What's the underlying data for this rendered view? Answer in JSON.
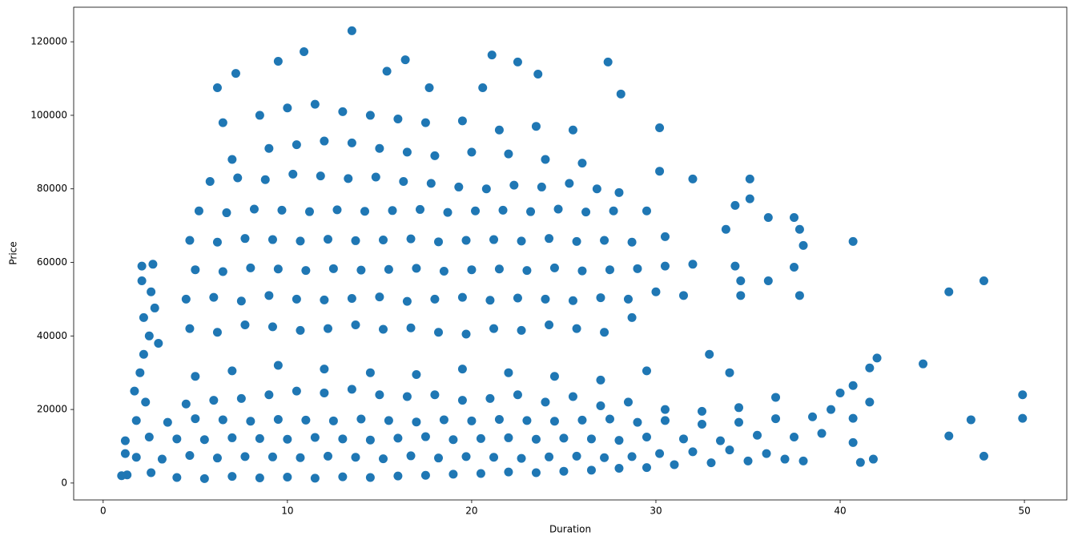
{
  "chart_data": {
    "type": "scatter",
    "color": "#1f77b4",
    "xlabel": "Duration",
    "ylabel": "Price",
    "xlim": [
      -1.6,
      52.3
    ],
    "ylim": [
      -4600,
      129400
    ],
    "xticks": [
      0,
      10,
      20,
      30,
      40,
      50
    ],
    "yticks": [
      0,
      20000,
      40000,
      60000,
      80000,
      100000,
      120000
    ],
    "x": [
      1.3,
      2.6,
      4.0,
      5.5,
      7.0,
      8.5,
      10.0,
      11.5,
      13.0,
      14.5,
      16.0,
      17.5,
      19.0,
      20.5,
      22.0,
      23.5,
      25.0,
      26.5,
      28.0,
      29.5,
      31.0,
      33.0,
      35.0,
      37.0,
      1.8,
      3.2,
      4.7,
      6.2,
      7.7,
      9.2,
      10.7,
      12.2,
      13.7,
      15.2,
      16.7,
      18.2,
      19.7,
      21.2,
      22.7,
      24.2,
      25.7,
      27.2,
      28.7,
      30.2,
      32.0,
      34.0,
      36.0,
      1.2,
      2.5,
      4.0,
      5.5,
      7.0,
      8.5,
      10.0,
      11.5,
      13.0,
      14.5,
      16.0,
      17.5,
      19.0,
      20.5,
      22.0,
      23.5,
      25.0,
      26.5,
      28.0,
      29.5,
      31.5,
      33.5,
      35.5,
      37.5,
      39.0,
      1.8,
      3.5,
      5.0,
      6.5,
      8.0,
      9.5,
      11.0,
      12.5,
      14.0,
      15.5,
      17.0,
      18.5,
      20.0,
      21.5,
      23.0,
      24.5,
      26.0,
      27.5,
      29.0,
      30.5,
      32.5,
      34.5,
      36.5,
      38.5,
      2.3,
      4.5,
      6.0,
      7.5,
      9.0,
      10.5,
      12.0,
      13.5,
      15.0,
      16.5,
      18.0,
      19.5,
      21.0,
      22.5,
      24.0,
      25.5,
      27.0,
      28.5,
      30.5,
      32.5,
      34.5,
      2.0,
      5.0,
      7.0,
      9.5,
      12.0,
      14.5,
      17.0,
      19.5,
      22.0,
      24.5,
      27.0,
      29.5,
      2.2,
      2.5,
      2.2,
      2.6,
      2.1,
      3.0,
      4.7,
      6.2,
      7.7,
      9.2,
      10.7,
      12.2,
      13.7,
      15.2,
      16.7,
      18.2,
      19.7,
      21.2,
      22.7,
      24.2,
      25.7,
      27.2,
      28.7,
      4.5,
      6.0,
      7.5,
      9.0,
      10.5,
      12.0,
      13.5,
      15.0,
      16.5,
      18.0,
      19.5,
      21.0,
      22.5,
      24.0,
      25.5,
      27.0,
      28.5,
      30.0,
      31.5,
      5.0,
      6.5,
      8.0,
      9.5,
      11.0,
      12.5,
      14.0,
      15.5,
      17.0,
      18.5,
      20.0,
      21.5,
      23.0,
      24.5,
      26.0,
      27.5,
      29.0,
      30.5,
      32.0,
      4.7,
      6.2,
      7.7,
      9.2,
      10.7,
      12.2,
      13.7,
      15.2,
      16.7,
      18.2,
      19.7,
      21.2,
      22.7,
      24.2,
      25.7,
      27.2,
      28.7,
      30.5,
      5.2,
      6.7,
      8.2,
      9.7,
      11.2,
      12.7,
      14.2,
      15.7,
      17.2,
      18.7,
      20.2,
      21.7,
      23.2,
      24.7,
      26.2,
      27.7,
      29.5,
      5.8,
      7.3,
      8.8,
      10.3,
      11.8,
      13.3,
      14.8,
      16.3,
      17.8,
      19.3,
      20.8,
      22.3,
      23.8,
      25.3,
      26.8,
      28.0,
      7.0,
      9.0,
      10.5,
      12.0,
      13.5,
      15.0,
      16.5,
      18.0,
      20.0,
      22.0,
      24.0,
      26.0,
      6.5,
      8.5,
      10.0,
      11.5,
      13.0,
      14.5,
      16.0,
      17.5,
      19.5,
      21.5,
      23.5,
      25.5,
      13.5,
      10.9,
      21.1,
      16.4,
      27.4,
      9.5,
      22.5,
      7.2,
      15.4,
      23.6,
      6.2,
      20.6,
      17.7,
      28.1,
      30.2,
      30.2,
      32.0,
      35.1,
      35.1,
      34.3,
      36.1,
      37.5,
      37.8,
      38.0,
      40.7,
      37.5,
      36.1,
      34.6,
      34.6,
      37.8,
      45.9,
      47.8,
      33.8,
      34.3,
      32.9,
      34.0,
      44.5,
      42.0,
      41.6,
      49.9,
      49.9,
      47.1,
      45.9,
      47.8,
      41.8,
      41.1,
      40.7,
      40.0,
      40.7,
      41.6,
      40.7,
      39.5,
      38.0,
      36.5,
      2.8,
      2.1,
      2.7,
      1.7,
      1.0,
      1.2
    ],
    "values": [
      2200,
      2800,
      1500,
      1200,
      1800,
      1400,
      1600,
      1300,
      1700,
      1500,
      1900,
      2100,
      2400,
      2600,
      3000,
      2800,
      3200,
      3500,
      4000,
      4200,
      5000,
      5500,
      6000,
      6500,
      7000,
      6500,
      7500,
      6800,
      7200,
      7100,
      6900,
      7300,
      7000,
      6600,
      7400,
      6800,
      7200,
      7000,
      6700,
      7100,
      7300,
      6900,
      7200,
      8000,
      8500,
      9000,
      8000,
      11500,
      12500,
      12000,
      11800,
      12300,
      12100,
      11900,
      12400,
      12000,
      11700,
      12200,
      12600,
      11800,
      12100,
      12300,
      11900,
      12200,
      12000,
      11600,
      12500,
      12000,
      11500,
      13000,
      12500,
      13500,
      17000,
      16500,
      17500,
      17200,
      16800,
      17300,
      17100,
      16900,
      17400,
      17000,
      16600,
      17200,
      16900,
      17300,
      17000,
      16800,
      17100,
      17400,
      16500,
      17000,
      16000,
      16500,
      17500,
      18000,
      22000,
      21500,
      22500,
      23000,
      24000,
      25000,
      24500,
      25500,
      24000,
      23500,
      24000,
      22500,
      23000,
      24000,
      22000,
      23500,
      21000,
      22000,
      20000,
      19500,
      20500,
      30000,
      29000,
      30500,
      32000,
      31000,
      30000,
      29500,
      31000,
      30000,
      29000,
      28000,
      30500,
      35000,
      40000,
      45000,
      52000,
      55000,
      38000,
      42000,
      41000,
      43000,
      42500,
      41500,
      42000,
      43000,
      41800,
      42200,
      41000,
      40500,
      42000,
      41500,
      43000,
      42000,
      41000,
      45000,
      50000,
      50500,
      49500,
      51000,
      50000,
      49800,
      50200,
      50600,
      49400,
      50000,
      50500,
      49700,
      50300,
      50000,
      49600,
      50400,
      50000,
      52000,
      51000,
      58000,
      57500,
      58500,
      58200,
      57800,
      58300,
      57900,
      58100,
      58400,
      57600,
      58000,
      58200,
      57800,
      58500,
      57700,
      58000,
      58300,
      59000,
      59500,
      66000,
      65500,
      66500,
      66200,
      65800,
      66300,
      65900,
      66100,
      66400,
      65600,
      66000,
      66200,
      65800,
      66500,
      65700,
      66000,
      65500,
      67000,
      74000,
      73500,
      74500,
      74200,
      73800,
      74300,
      73900,
      74100,
      74400,
      73600,
      74000,
      74200,
      73800,
      74500,
      73700,
      74000,
      74000,
      82000,
      83000,
      82500,
      84000,
      83500,
      82800,
      83200,
      82000,
      81500,
      80500,
      80000,
      81000,
      80500,
      81500,
      80000,
      79000,
      88000,
      91000,
      92000,
      93000,
      92500,
      91000,
      90000,
      89000,
      90000,
      89500,
      88000,
      87000,
      98000,
      100000,
      102000,
      103000,
      101000,
      100000,
      99000,
      98000,
      98500,
      96000,
      97000,
      96000,
      123000,
      117300,
      116400,
      115100,
      114500,
      114700,
      114500,
      111400,
      112000,
      111200,
      107500,
      107500,
      107500,
      105800,
      96600,
      84800,
      82700,
      82700,
      77300,
      75500,
      72200,
      72200,
      69000,
      64600,
      65700,
      58700,
      55000,
      55000,
      51000,
      51000,
      52000,
      55000,
      69000,
      59000,
      35000,
      30000,
      32400,
      34000,
      31300,
      24000,
      17600,
      17200,
      12800,
      7300,
      6500,
      5600,
      11000,
      24500,
      26500,
      22000,
      17600,
      20000,
      6000,
      23300,
      47600,
      59000,
      59500,
      25000,
      2000,
      8000
    ]
  }
}
